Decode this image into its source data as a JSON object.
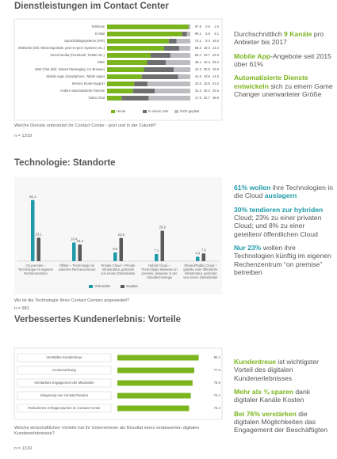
{
  "chart_data": [
    {
      "type": "stacked-bar-h",
      "title": "Dienstleistungen im Contact Center",
      "subtitle": "Welche Dienste unterstützt Ihr Contact Center - jetzt und in der Zukunft?",
      "note": "n = 1319",
      "categories": [
        "Telefonie",
        "E-Mail",
        "Sprachdialogsysteme (IVR)",
        "Webseite (inkl. Wissensportale, peer-to-peer Systeme etc.)",
        "Social media (Facebook, Twitter etc.)",
        "SMS",
        "Web Chat (inkl. Instant Messaging, Co-Browse)",
        "Mobile Apps (Smartphone, Tablet Apps)",
        "Service Kiosk-Support",
        "Andere automatisierte Dienste",
        "Video Chat"
      ],
      "xlim": [
        0,
        100
      ],
      "series": [
        {
          "name": "Heute",
          "color": "#7ab51d",
          "values": [
            97.8,
            90.1,
            74.1,
            68.3,
            52.4,
            48.1,
            44.3,
            41.6,
            32.6,
            31.2,
            17.5
          ]
        },
        {
          "name": "In einem Jahr",
          "color": "#6d6e70",
          "values": [
            0.6,
            5.8,
            9.4,
            18.3,
            23.7,
            22.4,
            35.8,
            43.6,
            15.9,
            26.2,
            32.7
          ]
        },
        {
          "name": "Nicht geplant",
          "color": "#bcbdc0",
          "values": [
            1.6,
            4.1,
            16.5,
            13.4,
            23.9,
            29.4,
            19.9,
            14.8,
            51.5,
            42.6,
            49.8
          ]
        }
      ]
    },
    {
      "type": "grouped-bar",
      "title": "Technologie: Standorte",
      "subtitle": "Wo ist die Technologie Ihres Contact Centers angesiedelt?",
      "note": "n = 981",
      "categories": [
        "On premise – Technologie im eigenen Rechenzentrum",
        "Offsite – Technologie im externen Rechenzentrum",
        "Private Cloud – Private Infrastruktur, gehostet von einem Dienstleister",
        "Hybrid Cloud – Technologie teilweise on premise, teilweise in der Cloudtechnologie",
        "Shared/Public Cloud – geteilte oder öffentliche Infrastruktur, gehostet von einem Dienstleister"
      ],
      "ylim": [
        0,
        70
      ],
      "series": [
        {
          "name": "Verbunden",
          "color": "#1e9aa8",
          "values": [
            60.1,
            18.4,
            8.6,
            7.1,
            4.4
          ]
        },
        {
          "name": "Geplant",
          "color": "#58595b",
          "values": [
            23.1,
            16.4,
            22.8,
            29.9,
            7.6
          ]
        }
      ]
    },
    {
      "type": "bar-h",
      "title": "Verbessertes Kundenerlebnis: Vorteile",
      "subtitle": "Welche wirtschaftlichen Vorteile hat Ihr Unternehmen als Resultat eines verbesserten digitalen Kundenerlebnisses?",
      "note": "n = 1319",
      "categories": [
        "Verstärkte Kundentreue",
        "Kostensenkung",
        "Verstärktes Engagement der Mitarbeiter",
        "Steigerung von Umsatz/Gewinn",
        "Reduziertes Anfragevolumen im Contact Center"
      ],
      "xlim": [
        0,
        100
      ],
      "color": "#7ab51d",
      "values": [
        82.1,
        77.6,
        75.9,
        74.1,
        72.4
      ]
    }
  ],
  "highlights": [
    [
      [
        {
          "text": "Durchschnittlich "
        },
        {
          "text": "9 Kanäle",
          "em": true
        },
        {
          "text": " pro Anbieter bis 2017"
        }
      ],
      [
        {
          "text": "Mobile App",
          "em": true
        },
        {
          "text": "-Angebote seit 2015 über 61%"
        }
      ],
      [
        {
          "text": "Automatisierte Dienste entwickeln",
          "em": true
        },
        {
          "text": " sich zu einem Game Changer unerwarteter Größe"
        }
      ]
    ],
    [
      [
        {
          "text": "61% wollen",
          "em": true
        },
        {
          "text": " ihre Technologien in die Cloud "
        },
        {
          "text": "auslagern",
          "em": true
        }
      ],
      [
        {
          "text": "30% tendieren zur hybriden",
          "em": true
        },
        {
          "text": " Cloud; 23% zu einer privaten Cloud; und 8% zu einer geteilten/ öffentlichen Cloud"
        }
      ],
      [
        {
          "text": "Nur 23%",
          "em": true
        },
        {
          "text": " wollen ihre Technologien künftig im eigenen Rechenzentrum “on premise” betreiben"
        }
      ]
    ],
    [
      [
        {
          "text": "Kundentreue",
          "em": true
        },
        {
          "text": " ist wichtigster Vorteil des digitalen Kundenerlebnisses"
        }
      ],
      [
        {
          "text": "Mehr als ¾ sparen",
          "em": true
        },
        {
          "text": " dank digitaler Kanäle Kosten"
        }
      ],
      [
        {
          "text": "Bei 76% verstärken",
          "em": true
        },
        {
          "text": " die digitalen Möglichkeiten das Engagement der Beschäftigten"
        }
      ]
    ]
  ]
}
